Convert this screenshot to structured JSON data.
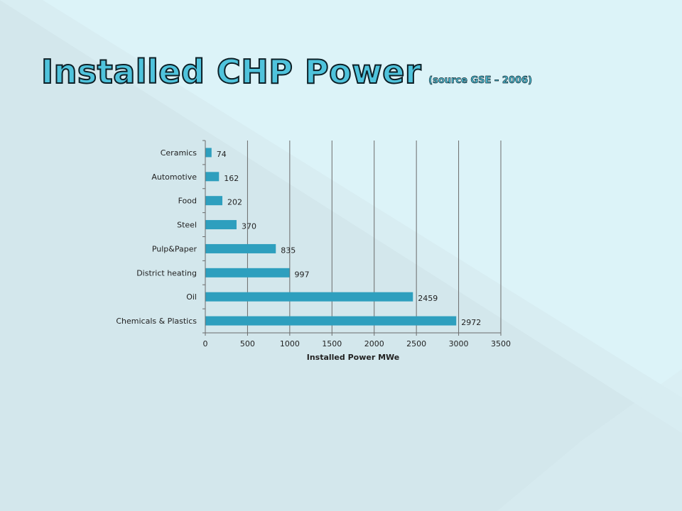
{
  "title": {
    "main": "Installed CHP Power",
    "sub": "(source GSE – 2006)"
  },
  "colors": {
    "bar": "#2e9fbe",
    "title_fill": "#4fc3dc",
    "background": "#dcf3f8"
  },
  "chart_data": {
    "type": "bar",
    "orientation": "horizontal",
    "categories": [
      "Ceramics",
      "Automotive",
      "Food",
      "Steel",
      "Pulp&Paper",
      "District heating",
      "Oil",
      "Chemicals & Plastics"
    ],
    "values": [
      74,
      162,
      202,
      370,
      835,
      997,
      2459,
      2972
    ],
    "xlabel": "Installed Power MWe",
    "ylabel": "",
    "xlim": [
      0,
      3500
    ],
    "xticks": [
      0,
      500,
      1000,
      1500,
      2000,
      2500,
      3000,
      3500
    ],
    "grid": "vertical",
    "legend": "none"
  }
}
